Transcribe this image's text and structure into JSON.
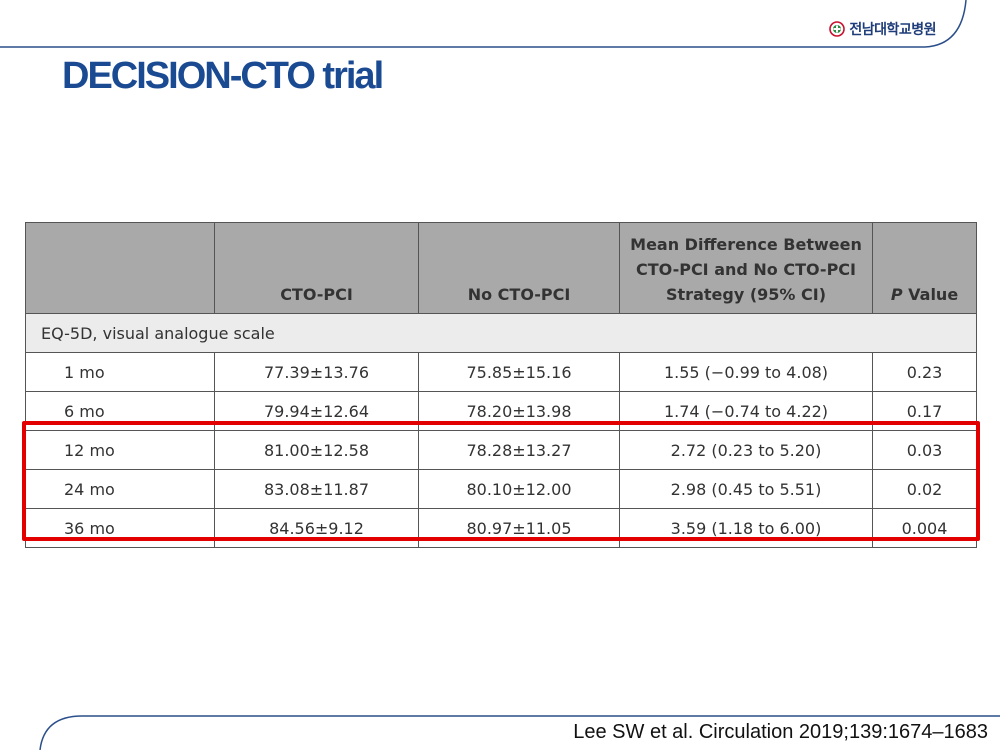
{
  "header": {
    "logo_text": "전남대학교병원",
    "title": "DECISION-CTO trial"
  },
  "table": {
    "columns": [
      "",
      "CTO-PCI",
      "No CTO-PCI",
      "Mean Difference Between CTO-PCI and No CTO-PCI Strategy (95% CI)",
      "P Value"
    ],
    "p_italic": "P",
    "p_rest": " Value",
    "section_label": "EQ-5D, visual analogue scale",
    "rows": [
      [
        "1 mo",
        "77.39±13.76",
        "75.85±15.16",
        "1.55 (−0.99 to 4.08)",
        "0.23"
      ],
      [
        "6 mo",
        "79.94±12.64",
        "78.20±13.98",
        "1.74 (−0.74 to 4.22)",
        "0.17"
      ],
      [
        "12 mo",
        "81.00±12.58",
        "78.28±13.27",
        "2.72 (0.23 to 5.20)",
        "0.03"
      ],
      [
        "24 mo",
        "83.08±11.87",
        "80.10±12.00",
        "2.98 (0.45 to 5.51)",
        "0.02"
      ],
      [
        "36 mo",
        "84.56±9.12",
        "80.97±11.05",
        "3.59 (1.18 to 6.00)",
        "0.004"
      ]
    ]
  },
  "citation": "Lee SW et al. Circulation 2019;139:1674–1683",
  "colors": {
    "title": "#1a4a92",
    "highlight": "#e30000",
    "header_bg": "#a9a9a9",
    "frame": "#2b4f8a"
  }
}
